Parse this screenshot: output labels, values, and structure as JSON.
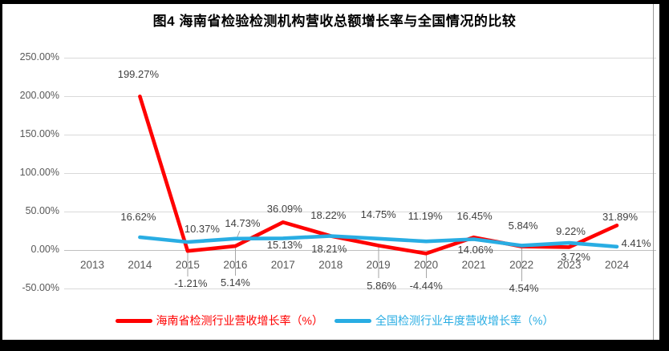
{
  "title": "图4  海南省检验检测机构营收总额增长率与全国情况的比较",
  "colors": {
    "hainan_series": "#ff0000",
    "national_series": "#29ade3",
    "gridline": "#d9d9d9",
    "axis_text": "#595959",
    "data_label_text": "#3f3f3f",
    "leader_line": "#a6a6a6",
    "frame": "#000000",
    "background": "#ffffff"
  },
  "chart_data": {
    "type": "line",
    "title": "图4  海南省检验检测机构营收总额增长率与全国情况的比较",
    "categories": [
      "2013",
      "2014",
      "2015",
      "2016",
      "2017",
      "2018",
      "2019",
      "2020",
      "2021",
      "2022",
      "2023",
      "2024"
    ],
    "ylim": [
      -50,
      250
    ],
    "grid": true,
    "legend_position": "bottom",
    "y_ticks": [
      {
        "value": 250,
        "label": "250.00%"
      },
      {
        "value": 200,
        "label": "200.00%"
      },
      {
        "value": 150,
        "label": "150.00%"
      },
      {
        "value": 100,
        "label": "100.00%"
      },
      {
        "value": 50,
        "label": "50.00%"
      },
      {
        "value": 0,
        "label": "0.00%"
      },
      {
        "value": -50,
        "label": "-50.00%"
      }
    ],
    "series": [
      {
        "name": "海南省检测行业营收增长率（%）",
        "color": "#ff0000",
        "points": [
          {
            "x": 2014,
            "value": 199.27,
            "label": "199.27%",
            "dx": -2,
            "dy": -27
          },
          {
            "x": 2015,
            "value": -1.21,
            "label": "-1.21%",
            "dx": 4,
            "dy": 41
          },
          {
            "x": 2016,
            "value": 5.14,
            "label": "5.14%",
            "dx": 0,
            "dy": 46
          },
          {
            "x": 2017,
            "value": 36.09,
            "label": "36.09%",
            "dx": 2,
            "dy": -16
          },
          {
            "x": 2018,
            "value": 18.22,
            "label": "18.22%",
            "dx": -3,
            "dy": -26
          },
          {
            "x": 2019,
            "value": 5.86,
            "label": "5.86%",
            "dx": 4,
            "dy": 51
          },
          {
            "x": 2020,
            "value": -4.44,
            "label": "-4.44%",
            "dx": 0,
            "dy": 41
          },
          {
            "x": 2021,
            "value": 16.45,
            "label": "16.45%",
            "dx": 1,
            "dy": -26
          },
          {
            "x": 2022,
            "value": 4.54,
            "label": "4.54%",
            "dx": 3,
            "dy": 52
          },
          {
            "x": 2023,
            "value": 3.72,
            "label": "3.72%",
            "dx": 8,
            "dy": 13
          },
          {
            "x": 2024,
            "value": 31.89,
            "label": "31.89%",
            "dx": 4,
            "dy": -10
          }
        ]
      },
      {
        "name": "全国检测行业年度营收增长率（%）",
        "color": "#29ade3",
        "points": [
          {
            "x": 2014,
            "value": 16.62,
            "label": "16.62%",
            "dx": -2,
            "dy": -25
          },
          {
            "x": 2015,
            "value": 10.37,
            "label": "10.37%",
            "dx": 18,
            "dy": -16
          },
          {
            "x": 2016,
            "value": 14.73,
            "label": "14.73%",
            "dx": 9,
            "dy": -19
          },
          {
            "x": 2017,
            "value": 15.13,
            "label": "15.13%",
            "dx": 2,
            "dy": 9
          },
          {
            "x": 2018,
            "value": 18.21,
            "label": "18.21%",
            "dx": -2,
            "dy": 16
          },
          {
            "x": 2019,
            "value": 14.75,
            "label": "14.75%",
            "dx": 0,
            "dy": -30
          },
          {
            "x": 2020,
            "value": 11.19,
            "label": "11.19%",
            "dx": -1,
            "dy": -31
          },
          {
            "x": 2021,
            "value": 14.06,
            "label": "14.06%",
            "dx": 2,
            "dy": 13
          },
          {
            "x": 2022,
            "value": 5.84,
            "label": "5.84%",
            "dx": 2,
            "dy": -24
          },
          {
            "x": 2023,
            "value": 9.22,
            "label": "9.22%",
            "dx": 2,
            "dy": -14
          },
          {
            "x": 2024,
            "value": 4.41,
            "label": "4.41%",
            "dx": 24,
            "dy": -4
          }
        ]
      }
    ],
    "label_leader_lines": [
      {
        "x1": 234,
        "y1": 314,
        "x2": 234,
        "y2": 345
      },
      {
        "x1": 293.5,
        "y1": 309,
        "x2": 293.5,
        "y2": 344
      },
      {
        "x1": 472,
        "y1": 307,
        "x2": 472,
        "y2": 347
      },
      {
        "x1": 531.5,
        "y1": 318,
        "x2": 531.5,
        "y2": 347
      },
      {
        "x1": 650.5,
        "y1": 309,
        "x2": 650.5,
        "y2": 351
      },
      {
        "x1": 299,
        "y1": 288,
        "x2": 294,
        "y2": 300
      }
    ]
  },
  "legend": {
    "items": [
      {
        "label": "海南省检测行业营收增长率（%）"
      },
      {
        "label": "全国检测行业年度营收增长率（%）"
      }
    ]
  }
}
